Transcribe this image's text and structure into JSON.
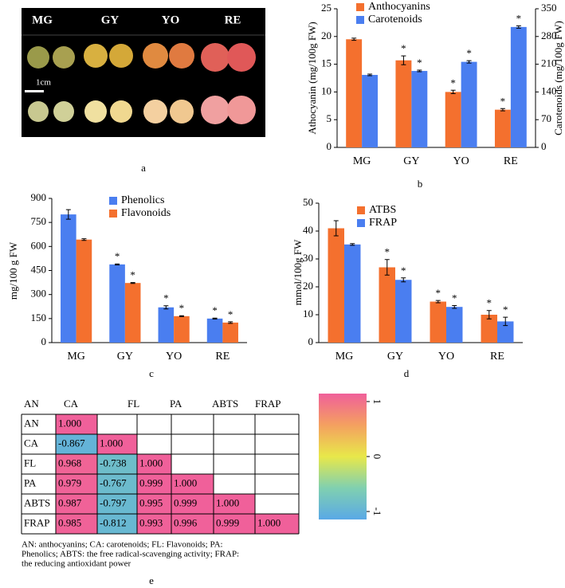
{
  "photo": {
    "labels": [
      "MG",
      "GY",
      "YO",
      "RE"
    ],
    "scale_label": "1cm",
    "caption": "a"
  },
  "chart_data": [
    {
      "type": "bar",
      "caption": "b",
      "categories": [
        "MG",
        "GY",
        "YO",
        "RE"
      ],
      "ylabel": "Athocyanin (mg/100g FW)",
      "y2label": "Carotenoids (mg/100g FW)",
      "ylim": [
        0,
        25
      ],
      "yticks": [
        0,
        5,
        10,
        15,
        20,
        25
      ],
      "y2lim": [
        0,
        350
      ],
      "y2ticks": [
        0,
        70,
        140,
        210,
        280,
        350
      ],
      "series": [
        {
          "name": "Anthocyanins",
          "color": "#f4702e",
          "values": [
            19.5,
            15.7,
            10,
            6.8
          ],
          "errors": [
            0.2,
            0.8,
            0.3,
            0.2
          ],
          "significance": [
            null,
            "*",
            "*",
            "*"
          ]
        },
        {
          "name": "Carotenoids",
          "color": "#4a7ef0",
          "axis": "y2",
          "values": [
            183,
            193,
            216,
            304
          ],
          "errors": [
            2,
            2,
            3,
            3
          ],
          "significance": [
            null,
            "*",
            "*",
            "*"
          ]
        }
      ]
    },
    {
      "type": "bar",
      "caption": "c",
      "categories": [
        "MG",
        "GY",
        "YO",
        "RE"
      ],
      "ylabel": "mg/100 g FW",
      "ylim": [
        0,
        900
      ],
      "yticks": [
        0,
        150,
        300,
        450,
        600,
        750,
        900
      ],
      "series": [
        {
          "name": "Phenolics",
          "color": "#4a7ef0",
          "values": [
            800,
            488,
            220,
            150
          ],
          "errors": [
            30,
            3,
            10,
            3
          ],
          "significance": [
            null,
            "*",
            "*",
            "*"
          ]
        },
        {
          "name": "Flavonoids",
          "color": "#f4702e",
          "values": [
            643,
            372,
            165,
            125
          ],
          "errors": [
            5,
            3,
            3,
            5
          ],
          "significance": [
            null,
            "*",
            "*",
            "*"
          ]
        }
      ]
    },
    {
      "type": "bar",
      "caption": "d",
      "categories": [
        "MG",
        "GY",
        "YO",
        "RE"
      ],
      "ylabel": "mmol/100g  FW",
      "ylim": [
        0,
        50
      ],
      "yticks": [
        0,
        10,
        20,
        30,
        40,
        50
      ],
      "series": [
        {
          "name": "ATBS",
          "color": "#f4702e",
          "values": [
            41,
            27,
            14.7,
            10
          ],
          "errors": [
            2.7,
            2.8,
            0.4,
            1.5
          ],
          "significance": [
            null,
            "*",
            "*",
            "*"
          ]
        },
        {
          "name": "FRAP",
          "color": "#4a7ef0",
          "values": [
            35.2,
            22.5,
            12.8,
            7.6
          ],
          "errors": [
            0.3,
            0.7,
            0.5,
            1.5
          ],
          "significance": [
            null,
            "*",
            "*",
            "*"
          ]
        }
      ]
    },
    {
      "type": "heatmap",
      "caption": "e",
      "columns": [
        "AN",
        "CA",
        "FL",
        "PA",
        "ABTS",
        "FRAP"
      ],
      "rows": [
        "AN",
        "CA",
        "FL",
        "PA",
        "ABTS",
        "FRAP"
      ],
      "values": [
        [
          1,
          null,
          null,
          null,
          null,
          null
        ],
        [
          -0.867,
          1,
          null,
          null,
          null,
          null
        ],
        [
          0.968,
          -0.738,
          1,
          null,
          null,
          null
        ],
        [
          0.979,
          -0.767,
          0.999,
          1,
          null,
          null
        ],
        [
          0.987,
          -0.797,
          0.995,
          0.999,
          1,
          null
        ],
        [
          0.985,
          -0.812,
          0.993,
          0.996,
          0.999,
          1
        ]
      ],
      "value_labels": [
        [
          "1.000",
          null,
          null,
          null,
          null,
          null
        ],
        [
          "-0.867",
          "1.000",
          null,
          null,
          null,
          null
        ],
        [
          "0.968",
          "-0.738",
          "1.000",
          null,
          null,
          null
        ],
        [
          "0.979",
          "-0.767",
          "0.999",
          "1.000",
          null,
          null
        ],
        [
          "0.987",
          "-0.797",
          "0.995",
          "0.999",
          "1.000",
          null
        ],
        [
          "0.985",
          "-0.812",
          "0.993",
          "0.996",
          "0.999",
          "1.000"
        ]
      ],
      "zlim": [
        -1,
        1
      ],
      "zticks": [
        1,
        0,
        -1
      ],
      "note": [
        "AN: anthocyanins; CA: carotenoids; FL: Flavonoids; PA:",
        "Phenolics; ABTS: the free radical-scavenging activity; FRAP:",
        "the reducing antioxidant power"
      ]
    }
  ]
}
